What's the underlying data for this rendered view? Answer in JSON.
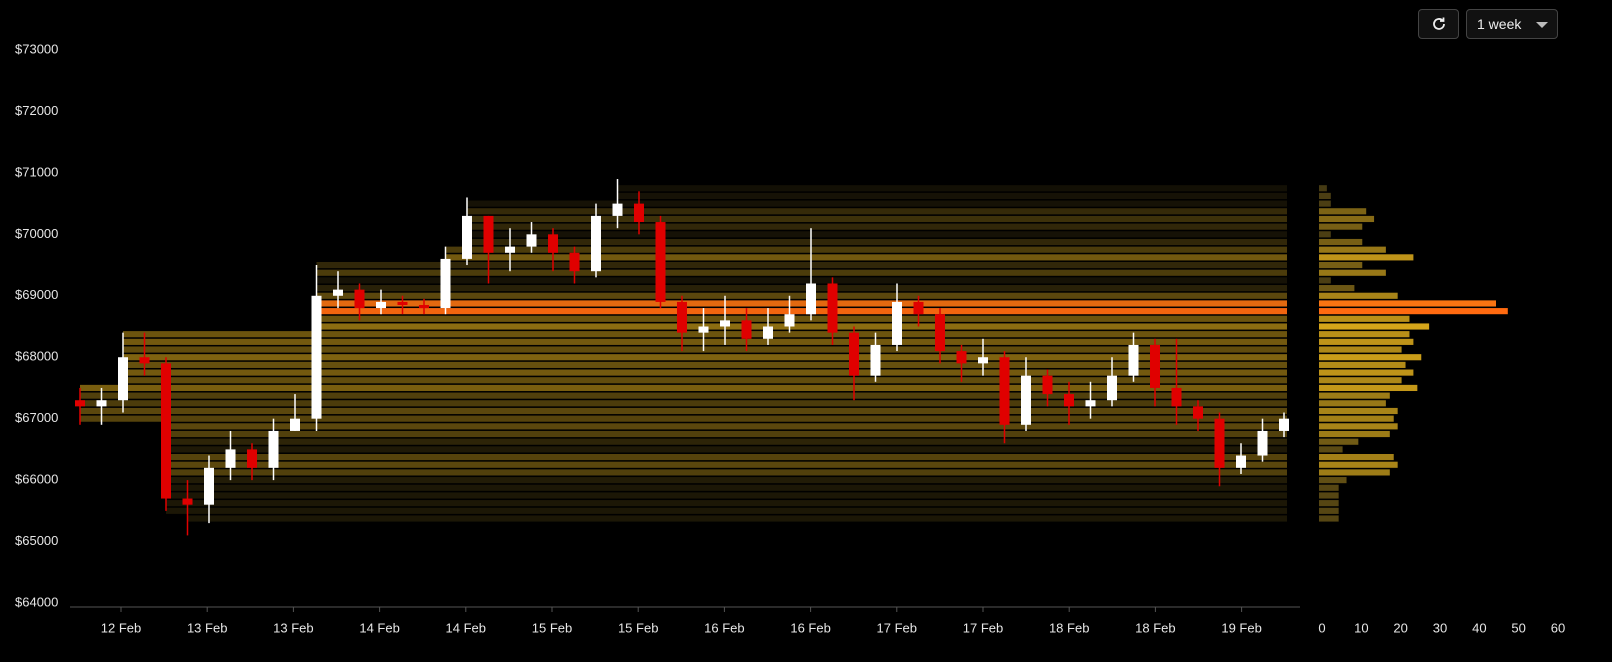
{
  "toolbar": {
    "range": "1 week"
  },
  "chart_data": [
    {
      "type": "candlestick",
      "xticks": [
        "12 Feb",
        "13 Feb",
        "13 Feb",
        "14 Feb",
        "14 Feb",
        "15 Feb",
        "15 Feb",
        "16 Feb",
        "16 Feb",
        "17 Feb",
        "17 Feb",
        "18 Feb",
        "18 Feb",
        "19 Feb"
      ],
      "ylim": [
        64000,
        73000
      ],
      "yticks": [
        {
          "value": 64000,
          "label": "$64000"
        },
        {
          "value": 65000,
          "label": "$65000"
        },
        {
          "value": 66000,
          "label": "$66000"
        },
        {
          "value": 67000,
          "label": "$67000"
        },
        {
          "value": 68000,
          "label": "$68000"
        },
        {
          "value": 69000,
          "label": "$69000"
        },
        {
          "value": 70000,
          "label": "$70000"
        },
        {
          "value": 71000,
          "label": "$71000"
        },
        {
          "value": 72000,
          "label": "$72000"
        },
        {
          "value": 73000,
          "label": "$73000"
        }
      ],
      "up_color": "#ffffff",
      "down_color": "#e00000",
      "open": [
        67300,
        67200,
        67300,
        68000,
        67900,
        65700,
        65600,
        66200,
        66500,
        66200,
        66800,
        67000,
        69000,
        69100,
        68800,
        68900,
        68850,
        68800,
        69600,
        70300,
        69700,
        69800,
        70000,
        69700,
        69400,
        70300,
        70500,
        70200,
        68900,
        68400,
        68500,
        68600,
        68300,
        68500,
        68700,
        69200,
        68400,
        67700,
        68200,
        68900,
        68700,
        68100,
        67900,
        68000,
        66900,
        67700,
        67400,
        67200,
        67300,
        67700,
        68200,
        67500,
        67200,
        67000,
        66200,
        66400,
        66800
      ],
      "high": [
        67500,
        67500,
        68400,
        68400,
        68000,
        66000,
        66400,
        66800,
        66600,
        67000,
        67400,
        69500,
        69400,
        69200,
        69100,
        69000,
        68950,
        69800,
        70600,
        70300,
        70100,
        70200,
        70100,
        69800,
        70500,
        70900,
        70700,
        70300,
        69000,
        68800,
        69000,
        68800,
        68800,
        69000,
        70100,
        69300,
        68500,
        68400,
        69200,
        69000,
        68800,
        68200,
        68300,
        68100,
        68000,
        67800,
        67600,
        67600,
        68000,
        68400,
        68300,
        68300,
        67300,
        67100,
        66600,
        67000,
        67100
      ],
      "low": [
        66900,
        66900,
        67100,
        67700,
        65500,
        65100,
        65300,
        66000,
        66000,
        66000,
        66800,
        66800,
        68800,
        68600,
        68700,
        68700,
        68700,
        68700,
        69500,
        69200,
        69400,
        69700,
        69400,
        69200,
        69300,
        70100,
        70000,
        68800,
        68100,
        68100,
        68200,
        68100,
        68200,
        68400,
        68600,
        68200,
        67300,
        67600,
        68100,
        68500,
        67900,
        67600,
        67700,
        66600,
        66800,
        67200,
        66900,
        67000,
        67200,
        67600,
        67200,
        66900,
        66800,
        65900,
        66100,
        66300,
        66700
      ],
      "close": [
        67200,
        67300,
        68000,
        67900,
        65700,
        65600,
        66200,
        66500,
        66200,
        66800,
        67000,
        69000,
        69100,
        68800,
        68900,
        68850,
        68800,
        69600,
        70300,
        69700,
        69800,
        70000,
        69700,
        69400,
        70300,
        70500,
        70200,
        68900,
        68400,
        68500,
        68600,
        68300,
        68500,
        68700,
        69200,
        68400,
        67700,
        68200,
        68900,
        68700,
        68100,
        67900,
        68000,
        66900,
        67700,
        67400,
        67200,
        67300,
        67700,
        68200,
        67500,
        67200,
        67000,
        66200,
        66400,
        66800,
        67000
      ]
    },
    {
      "type": "volume-profile",
      "levels": [
        65375,
        65500,
        65625,
        65750,
        65875,
        66000,
        66125,
        66250,
        66375,
        66500,
        66625,
        66750,
        66875,
        67000,
        67125,
        67250,
        67375,
        67500,
        67625,
        67750,
        67875,
        68000,
        68125,
        68250,
        68375,
        68500,
        68625,
        68750,
        68875,
        69000,
        69125,
        69250,
        69375,
        69500,
        69625,
        69750,
        69875,
        70000,
        70125,
        70250,
        70375,
        70500,
        70625,
        70750
      ],
      "values": [
        5,
        5,
        5,
        5,
        5,
        7,
        18,
        20,
        19,
        6,
        10,
        18,
        20,
        19,
        20,
        17,
        18,
        25,
        21,
        24,
        22,
        26,
        21,
        24,
        23,
        28,
        23,
        48,
        45,
        20,
        9,
        3,
        17,
        11,
        24,
        17,
        11,
        3,
        11,
        14,
        12,
        3,
        3,
        2
      ],
      "xlim": [
        0,
        60
      ],
      "xticks": [
        0,
        10,
        20,
        30,
        40,
        50,
        60
      ],
      "color_scale": [
        "#3a3212",
        "#d9a81a",
        "#ff6a10"
      ]
    }
  ]
}
